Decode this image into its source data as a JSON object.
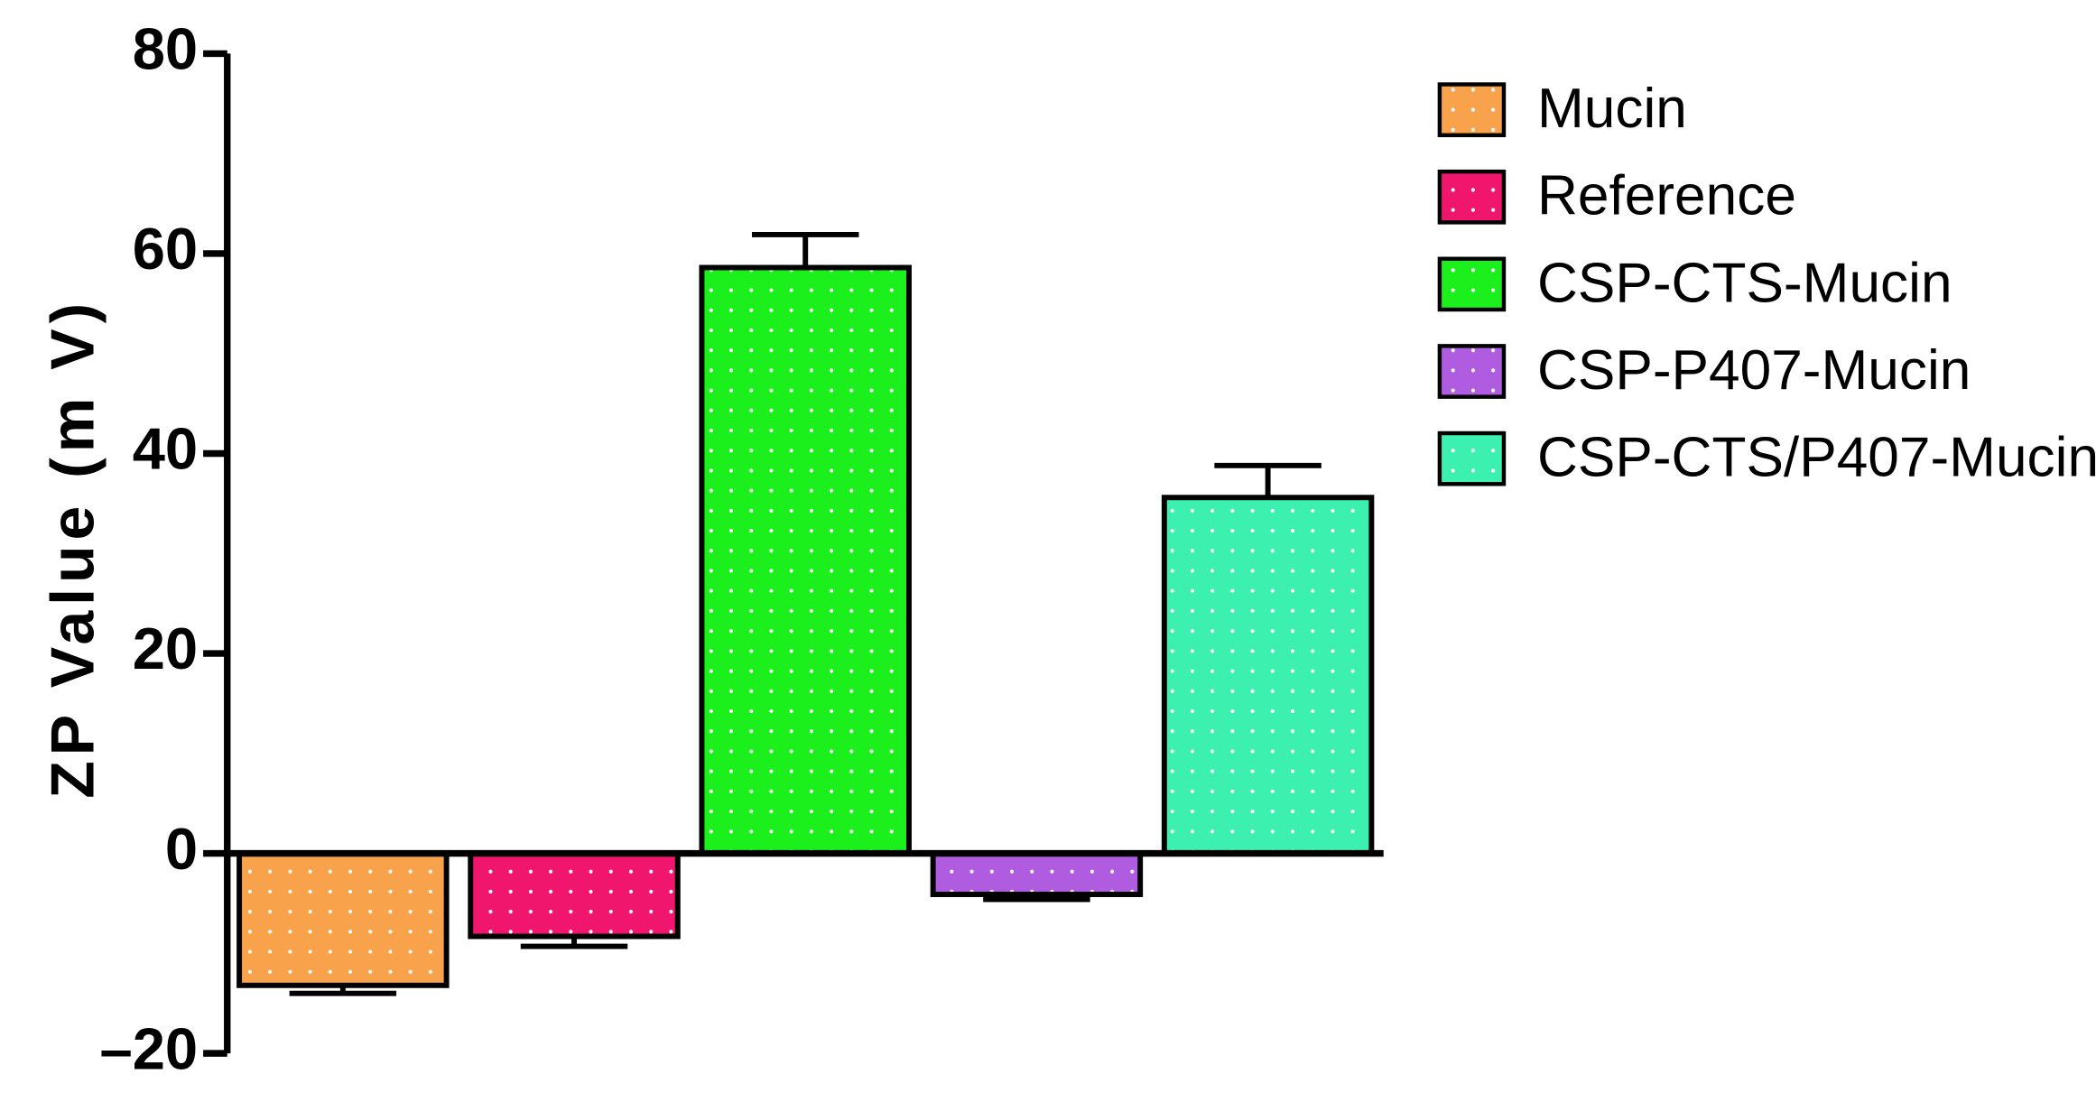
{
  "chart_data": {
    "type": "bar",
    "y_label": "ZP Value (m V)",
    "series": [
      {
        "name": "Mucin",
        "color": "#f9a24c",
        "values": [
          -13.2
        ],
        "errors": [
          0.8
        ]
      },
      {
        "name": "Reference",
        "color": "#f0166e",
        "values": [
          -8.3
        ],
        "errors": [
          1.0
        ]
      },
      {
        "name": "CSP-CTS-Mucin",
        "color": "#1cf01c",
        "values": [
          58.6
        ],
        "errors": [
          3.3
        ]
      },
      {
        "name": "CSP-P407-Mucin",
        "color": "#b05ce0",
        "values": [
          -4.1
        ],
        "errors": [
          0.5
        ]
      },
      {
        "name": "CSP-CTS/P407-Mucin",
        "color": "#3cf0b0",
        "values": [
          35.6
        ],
        "errors": [
          3.2
        ]
      }
    ],
    "ylim": [
      -20,
      80
    ],
    "yticks": [
      {
        "value": -20,
        "label": "–20"
      },
      0,
      20,
      40,
      60,
      80
    ],
    "legend": "right"
  }
}
